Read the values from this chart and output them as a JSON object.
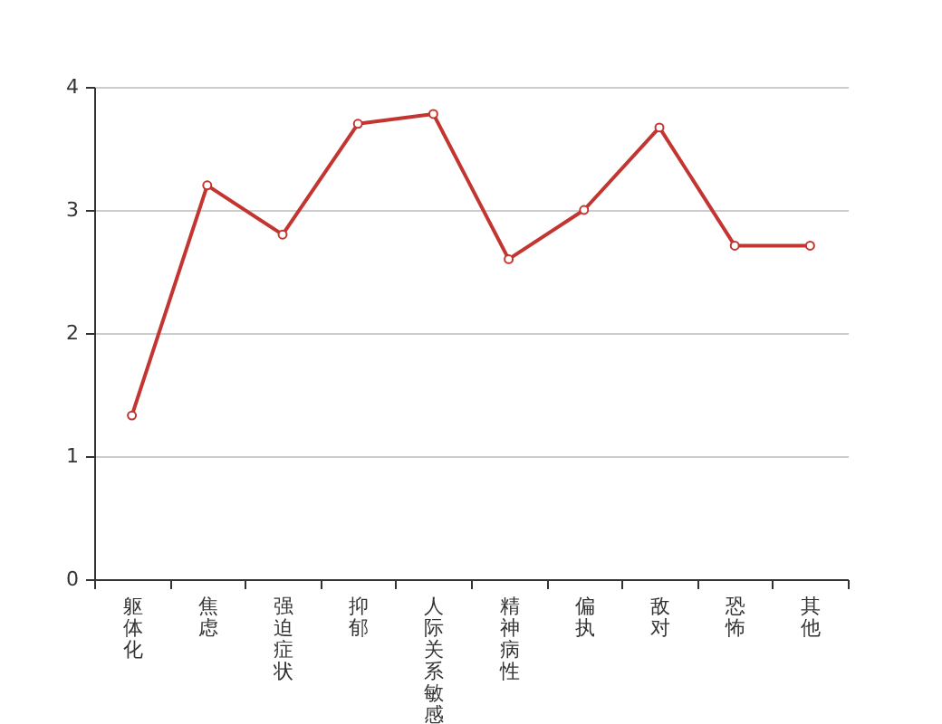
{
  "chart_data": {
    "type": "line",
    "categories": [
      "躯体化",
      "焦虑",
      "强迫症状",
      "抑郁",
      "人际关系敏感",
      "精神病性",
      "偏执",
      "敌对",
      "恐怖",
      "其他"
    ],
    "series": [
      {
        "color": "#c23531",
        "values": [
          1.33,
          3.2,
          2.8,
          3.7,
          3.78,
          2.6,
          3.0,
          3.67,
          2.71,
          2.71
        ]
      }
    ],
    "ylim": [
      0,
      4
    ],
    "yticks": [
      0,
      1,
      2,
      3,
      4
    ],
    "grid": "y",
    "marker": "circle",
    "line_style": "solid"
  }
}
